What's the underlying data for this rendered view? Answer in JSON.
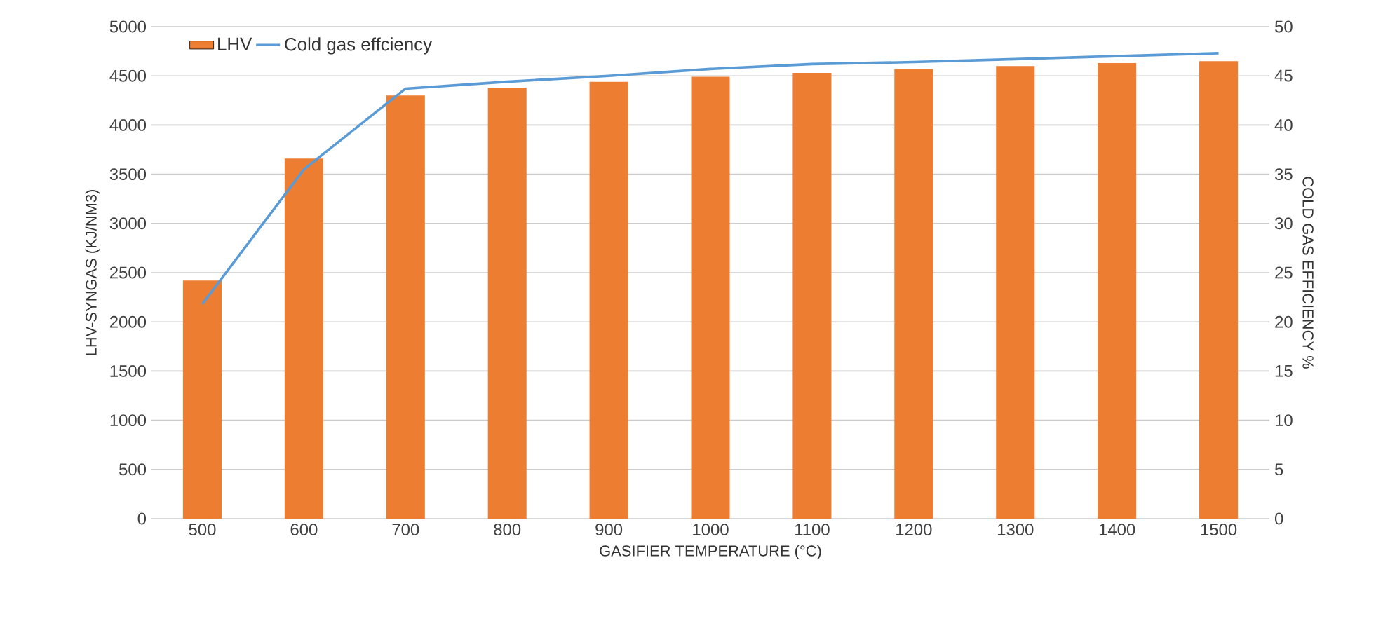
{
  "chart_data": {
    "type": "bar",
    "xlabel": "GASIFIER TEMPERATURE (°C)",
    "ylabel": "LHV-SYNGAS (KJ/NM3)",
    "y2label": "COLD GAS EFFICIENCY %",
    "categories": [
      "500",
      "600",
      "700",
      "800",
      "900",
      "1000",
      "1100",
      "1200",
      "1300",
      "1400",
      "1500"
    ],
    "series": [
      {
        "name": "LHV",
        "color": "#ed7d31",
        "values": [
          2420,
          3660,
          4300,
          4380,
          4440,
          4490,
          4530,
          4570,
          4600,
          4630,
          4650
        ]
      },
      {
        "name": "Cold gas effciency",
        "type": "line",
        "axis": "y2",
        "color": "#5b9bd5",
        "values": [
          21.8,
          35.5,
          43.7,
          44.4,
          45.0,
          45.7,
          46.2,
          46.4,
          46.7,
          47.0,
          47.3
        ]
      }
    ],
    "ylim": [
      0,
      5000
    ],
    "yticks": [
      0,
      500,
      1000,
      1500,
      2000,
      2500,
      3000,
      3500,
      4000,
      4500,
      5000
    ],
    "y2lim": [
      0,
      50
    ],
    "y2ticks": [
      0,
      5,
      10,
      15,
      20,
      25,
      30,
      35,
      40,
      45,
      50
    ],
    "grid": "y",
    "legend": "top left"
  }
}
